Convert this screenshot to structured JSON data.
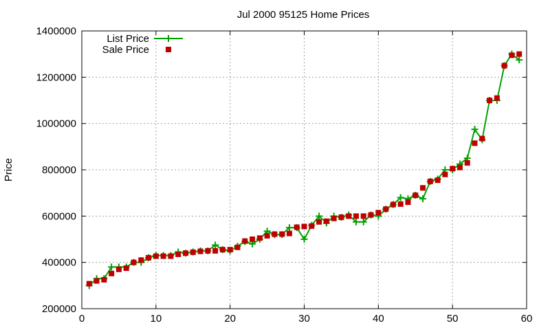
{
  "chart_data": {
    "type": "line",
    "title": "Jul 2000 95125 Home Prices",
    "xlabel": "",
    "ylabel": "Price",
    "xlim": [
      0,
      60
    ],
    "ylim": [
      200000,
      1400000
    ],
    "xticks": [
      0,
      10,
      20,
      30,
      40,
      50,
      60
    ],
    "yticks": [
      200000,
      400000,
      600000,
      800000,
      1000000,
      1200000,
      1400000
    ],
    "grid": true,
    "legend_position": "top-left",
    "series": [
      {
        "name": "List Price",
        "style": "line-with-plus-markers",
        "color": "#00a000",
        "x": [
          1,
          2,
          3,
          4,
          5,
          6,
          7,
          8,
          9,
          10,
          11,
          12,
          13,
          14,
          15,
          16,
          17,
          18,
          19,
          20,
          21,
          22,
          23,
          24,
          25,
          26,
          27,
          28,
          29,
          30,
          31,
          32,
          33,
          34,
          35,
          36,
          37,
          38,
          39,
          40,
          41,
          42,
          43,
          44,
          45,
          46,
          47,
          48,
          49,
          50,
          51,
          52,
          53,
          54,
          55,
          56,
          57,
          58,
          59
        ],
        "y": [
          300000,
          330000,
          330000,
          380000,
          380000,
          380000,
          400000,
          400000,
          420000,
          430000,
          430000,
          430000,
          445000,
          440000,
          445000,
          450000,
          450000,
          475000,
          455000,
          450000,
          470000,
          490000,
          480000,
          500000,
          535000,
          520000,
          520000,
          550000,
          550000,
          500000,
          560000,
          600000,
          570000,
          600000,
          595000,
          605000,
          575000,
          575000,
          605000,
          600000,
          630000,
          650000,
          680000,
          675000,
          690000,
          675000,
          750000,
          760000,
          800000,
          800000,
          825000,
          850000,
          975000,
          930000,
          1100000,
          1100000,
          1250000,
          1300000,
          1275000
        ]
      },
      {
        "name": "Sale Price",
        "style": "square-markers",
        "color": "#c00000",
        "x": [
          1,
          2,
          3,
          4,
          5,
          6,
          7,
          8,
          9,
          10,
          11,
          12,
          13,
          14,
          15,
          16,
          17,
          18,
          19,
          20,
          21,
          22,
          23,
          24,
          25,
          26,
          27,
          28,
          29,
          30,
          31,
          32,
          33,
          34,
          35,
          36,
          37,
          38,
          39,
          40,
          41,
          42,
          43,
          44,
          45,
          46,
          47,
          48,
          49,
          50,
          51,
          52,
          53,
          54,
          55,
          56,
          57,
          58,
          59
        ],
        "y": [
          308000,
          320000,
          325000,
          352000,
          370000,
          375000,
          400000,
          410000,
          420000,
          427000,
          427000,
          427000,
          435000,
          440000,
          444000,
          448000,
          450000,
          450000,
          455000,
          455000,
          465000,
          492000,
          500000,
          505000,
          515000,
          522000,
          522000,
          525000,
          552000,
          555000,
          557000,
          575000,
          578000,
          590000,
          595000,
          600000,
          600000,
          600000,
          605000,
          615000,
          630000,
          650000,
          652000,
          660000,
          690000,
          722000,
          750000,
          755000,
          780000,
          805000,
          810000,
          830000,
          915000,
          935000,
          1100000,
          1110000,
          1250000,
          1295000,
          1300000
        ]
      }
    ]
  }
}
